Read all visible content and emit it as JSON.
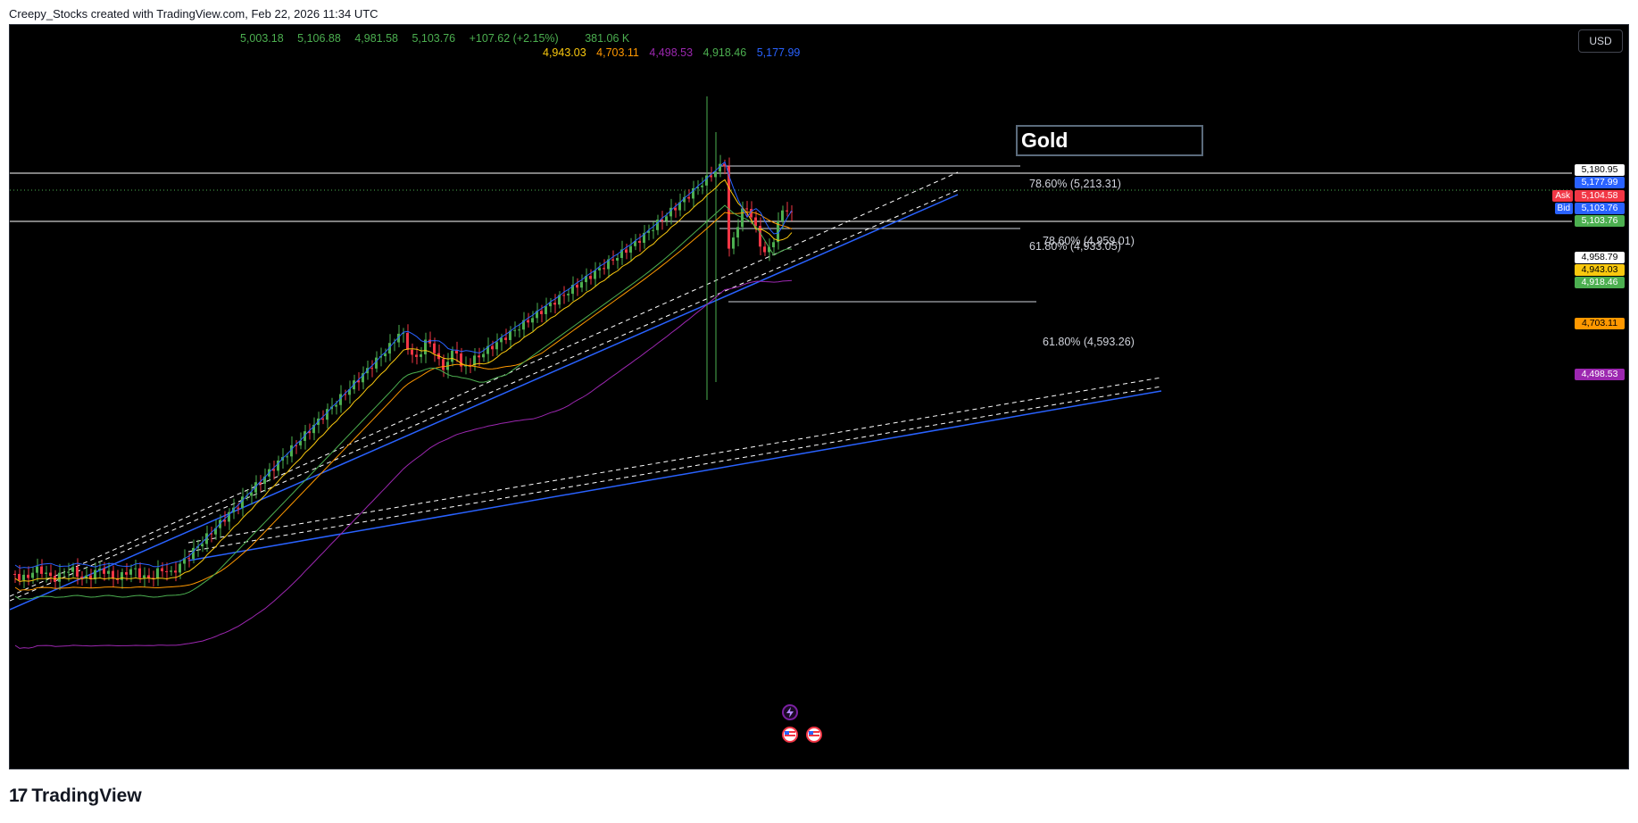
{
  "header": {
    "attribution": "Creepy_Stocks created with TradingView.com, Feb 22, 2026 11:34 UTC"
  },
  "ohlc": {
    "open": "5,003.18",
    "high": "5,106.88",
    "low": "4,981.58",
    "close": "5,103.76",
    "change": "+107.62 (+2.15%)",
    "volume": "381.06 K"
  },
  "indicators": [
    {
      "value": "4,943.03",
      "color": "#f9c80e"
    },
    {
      "value": "4,703.11",
      "color": "#ff9800"
    },
    {
      "value": "4,498.53",
      "color": "#9c27b0"
    },
    {
      "value": "4,918.46",
      "color": "#4caf50"
    },
    {
      "value": "5,177.99",
      "color": "#2962ff"
    }
  ],
  "currency_button": "USD",
  "symbol_label": "Gold",
  "fib_labels": {
    "a": "78.60% (5,213.31)",
    "b": "78.60% (4,959.01)",
    "c": "61.80% (4,933.05)",
    "d": "61.80% (4,593.26)"
  },
  "price_axis": {
    "p1": {
      "value": "5,180.95",
      "bg": "#ffffff",
      "fg": "#000000"
    },
    "p2": {
      "value": "5,177.99",
      "bg": "#2962ff",
      "fg": "#ffffff"
    },
    "ask": {
      "label": "Ask",
      "value": "5,104.58",
      "bg": "#f23645",
      "fg": "#ffffff"
    },
    "bid": {
      "label": "Bid",
      "value": "5,103.76",
      "bg": "#2962ff",
      "fg": "#ffffff"
    },
    "last": {
      "value": "5,103.76",
      "bg": "#4caf50",
      "fg": "#ffffff"
    },
    "p3": {
      "value": "4,958.79",
      "bg": "#ffffff",
      "fg": "#000000"
    },
    "p4": {
      "value": "4,943.03",
      "bg": "#f9c80e",
      "fg": "#000000"
    },
    "p5": {
      "value": "4,918.46",
      "bg": "#4caf50",
      "fg": "#ffffff"
    },
    "p6": {
      "value": "4,703.11",
      "bg": "#ff9800",
      "fg": "#000000"
    },
    "p7": {
      "value": "4,498.53",
      "bg": "#9c27b0",
      "fg": "#ffffff"
    }
  },
  "colors": {
    "up": "#4caf50",
    "down": "#f23645",
    "background": "#000000"
  },
  "footer": {
    "brand": "TradingView",
    "logo_icon": "tradingview-logo-icon"
  },
  "events": [
    "lightning-event-icon",
    "us-flag-event-icon",
    "us-flag-event-icon"
  ]
}
